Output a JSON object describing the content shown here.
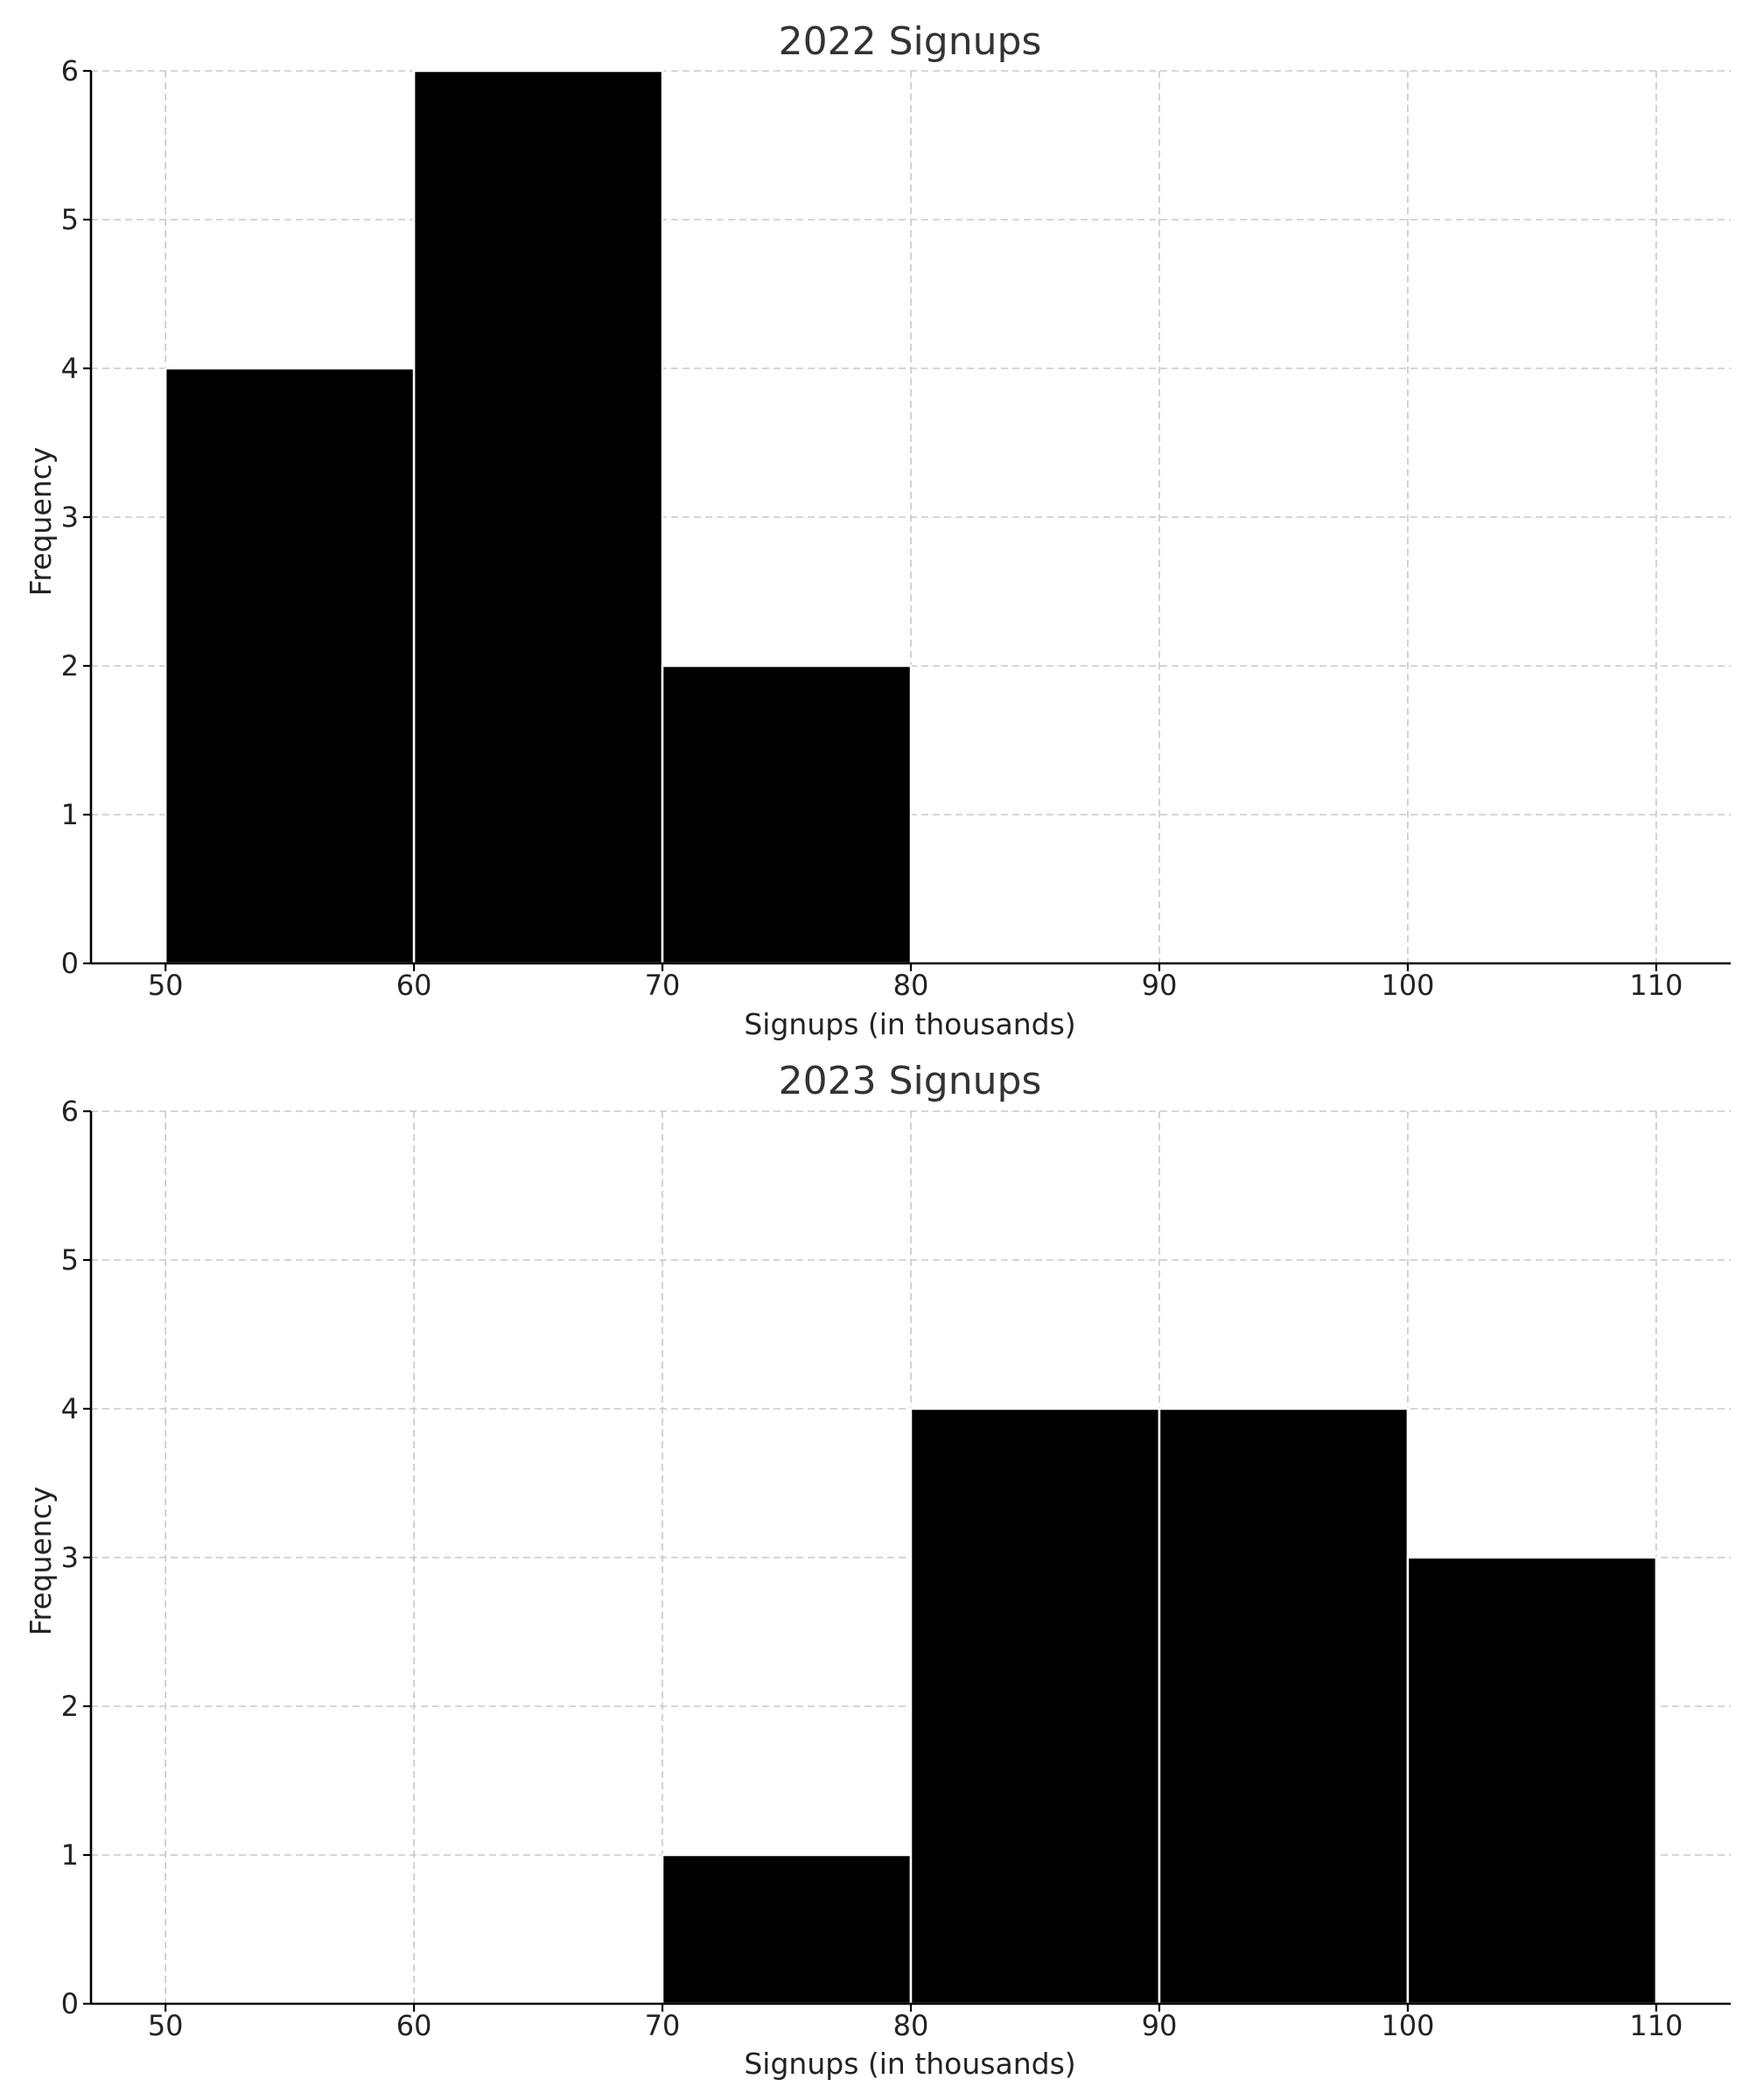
{
  "chart_data": [
    {
      "type": "bar",
      "title": "2022 Signups",
      "xlabel": "Signups (in thousands)",
      "ylabel": "Frequency",
      "bins": [
        [
          50,
          60
        ],
        [
          60,
          70
        ],
        [
          70,
          80
        ]
      ],
      "values": [
        4,
        6,
        2
      ],
      "xlim": [
        47,
        113
      ],
      "ylim": [
        0,
        6
      ],
      "xticks": [
        "50",
        "60",
        "70",
        "80",
        "90",
        "100",
        "110"
      ],
      "yticks": [
        "0",
        "1",
        "2",
        "3",
        "4",
        "5",
        "6"
      ],
      "grid": true,
      "bar_color": "#000000"
    },
    {
      "type": "bar",
      "title": "2023 Signups",
      "xlabel": "Signups (in thousands)",
      "ylabel": "Frequency",
      "bins": [
        [
          70,
          80
        ],
        [
          80,
          90
        ],
        [
          90,
          100
        ],
        [
          100,
          110
        ]
      ],
      "values": [
        1,
        4,
        4,
        3
      ],
      "xlim": [
        47,
        113
      ],
      "ylim": [
        0,
        6
      ],
      "xticks": [
        "50",
        "60",
        "70",
        "80",
        "90",
        "100",
        "110"
      ],
      "yticks": [
        "0",
        "1",
        "2",
        "3",
        "4",
        "5",
        "6"
      ],
      "grid": true,
      "bar_color": "#000000"
    }
  ]
}
